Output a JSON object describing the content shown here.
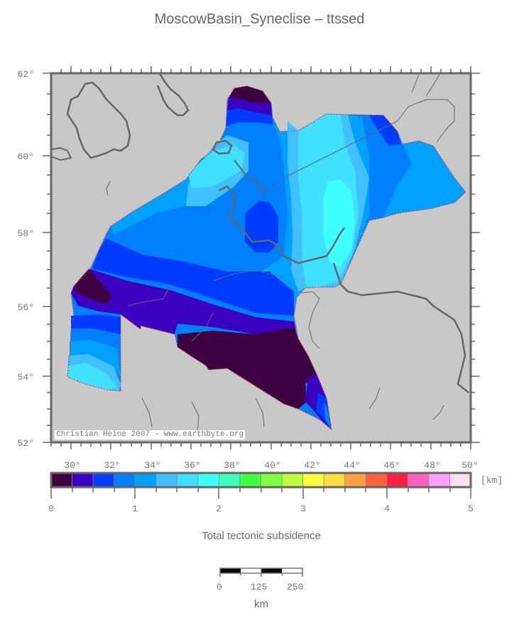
{
  "title": "MoscowBasin_Syneclise – ttssed",
  "map": {
    "lon_min": 29,
    "lon_max": 50,
    "lat_min": 52,
    "lat_max": 62,
    "lon_labels": [
      "30°",
      "32°",
      "34°",
      "36°",
      "38°",
      "40°",
      "42°",
      "44°",
      "46°",
      "48°",
      "50°"
    ],
    "lat_labels": [
      "62°",
      "60°",
      "58°",
      "56°",
      "54°",
      "52°"
    ],
    "land_color": "#c8c8c8",
    "coastline_color": "#666666",
    "outline_color": "#e03030",
    "credit": "Christian Heine 2007 - www.earthbyte.org"
  },
  "colorbar": {
    "unit": "[km]",
    "min": 0,
    "max": 5,
    "step": 0.25,
    "tick_labels": [
      "0",
      "1",
      "2",
      "3",
      "4",
      "5"
    ],
    "colors": [
      "#3d0040",
      "#3c00c0",
      "#003cff",
      "#0080ff",
      "#00a0ff",
      "#40c0ff",
      "#40e0ff",
      "#40ffff",
      "#40ffc0",
      "#40ff40",
      "#80ff40",
      "#c0ff40",
      "#ffff40",
      "#ffe040",
      "#ffa040",
      "#ff6040",
      "#ff2040",
      "#ff60c0",
      "#ffa0ff",
      "#ffe0f0"
    ]
  },
  "subtitle": "Total tectonic subsidence",
  "scalebar": {
    "labels": [
      "0",
      "125",
      "250"
    ],
    "unit": "km"
  }
}
